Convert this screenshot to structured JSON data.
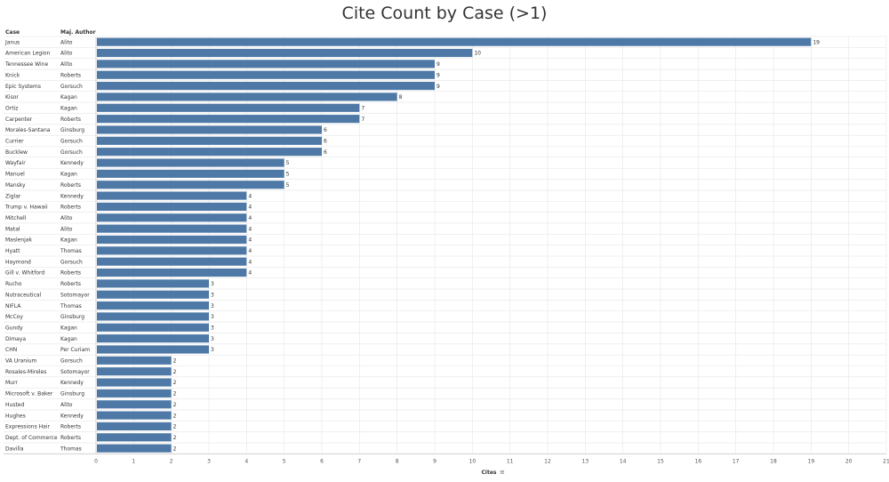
{
  "title": "Cite Count by Case (>1)",
  "columns": {
    "case": "Case",
    "author": "Maj. Author"
  },
  "x_axis_title": "Cites",
  "sort_icon": "sort-descending-icon",
  "colors": {
    "bar": "#4e79a7",
    "grid": "#e6e6e6",
    "text": "#333333"
  },
  "chart_data": {
    "type": "bar",
    "orientation": "horizontal",
    "title": "Cite Count by Case (>1)",
    "xlabel": "Cites",
    "xlim": [
      0,
      21
    ],
    "x_ticks": [
      0,
      1,
      2,
      3,
      4,
      5,
      6,
      7,
      8,
      9,
      10,
      11,
      12,
      13,
      14,
      15,
      16,
      17,
      18,
      19,
      20,
      21
    ],
    "grid": true,
    "rows": [
      {
        "case": "Janus",
        "author": "Alito",
        "value": 19
      },
      {
        "case": "American Legion",
        "author": "Alito",
        "value": 10
      },
      {
        "case": "Tennessee Wine",
        "author": "Alito",
        "value": 9
      },
      {
        "case": "Knick",
        "author": "Roberts",
        "value": 9
      },
      {
        "case": "Epic Systems",
        "author": "Gorsuch",
        "value": 9
      },
      {
        "case": "Kisor",
        "author": "Kagan",
        "value": 8
      },
      {
        "case": "Ortiz",
        "author": "Kagan",
        "value": 7
      },
      {
        "case": "Carpenter",
        "author": "Roberts",
        "value": 7
      },
      {
        "case": "Morales-Santana",
        "author": "Ginsburg",
        "value": 6
      },
      {
        "case": "Currier",
        "author": "Gorsuch",
        "value": 6
      },
      {
        "case": "Bucklew",
        "author": "Gorsuch",
        "value": 6
      },
      {
        "case": "Wayfair",
        "author": "Kennedy",
        "value": 5
      },
      {
        "case": "Manuel",
        "author": "Kagan",
        "value": 5
      },
      {
        "case": "Mansky",
        "author": "Roberts",
        "value": 5
      },
      {
        "case": "Ziglar",
        "author": "Kennedy",
        "value": 4
      },
      {
        "case": "Trump v. Hawaii",
        "author": "Roberts",
        "value": 4
      },
      {
        "case": "Mitchell",
        "author": "Alito",
        "value": 4
      },
      {
        "case": "Matal",
        "author": "Alito",
        "value": 4
      },
      {
        "case": "Maslenjak",
        "author": "Kagan",
        "value": 4
      },
      {
        "case": "Hyatt",
        "author": "Thomas",
        "value": 4
      },
      {
        "case": "Haymond",
        "author": "Gorsuch",
        "value": 4
      },
      {
        "case": "Gill v. Whitford",
        "author": "Roberts",
        "value": 4
      },
      {
        "case": "Rucho",
        "author": "Roberts",
        "value": 3
      },
      {
        "case": "Nutraceutical",
        "author": "Sotomayor",
        "value": 3
      },
      {
        "case": "NIFLA",
        "author": "Thomas",
        "value": 3
      },
      {
        "case": "McCoy",
        "author": "Ginsburg",
        "value": 3
      },
      {
        "case": "Gundy",
        "author": "Kagan",
        "value": 3
      },
      {
        "case": "Dimaya",
        "author": "Kagan",
        "value": 3
      },
      {
        "case": "CHN",
        "author": "Per Curiam",
        "value": 3
      },
      {
        "case": "VA Uranium",
        "author": "Gorsuch",
        "value": 2
      },
      {
        "case": "Rosales-Mireles",
        "author": "Sotomayor",
        "value": 2
      },
      {
        "case": "Murr",
        "author": "Kennedy",
        "value": 2
      },
      {
        "case": "Microsoft v. Baker",
        "author": "Ginsburg",
        "value": 2
      },
      {
        "case": "Husted",
        "author": "Alito",
        "value": 2
      },
      {
        "case": "Hughes",
        "author": "Kennedy",
        "value": 2
      },
      {
        "case": "Expressions Hair",
        "author": "Roberts",
        "value": 2
      },
      {
        "case": "Dept. of Commerce",
        "author": "Roberts",
        "value": 2
      },
      {
        "case": "Davilla",
        "author": "Thomas",
        "value": 2
      }
    ]
  }
}
